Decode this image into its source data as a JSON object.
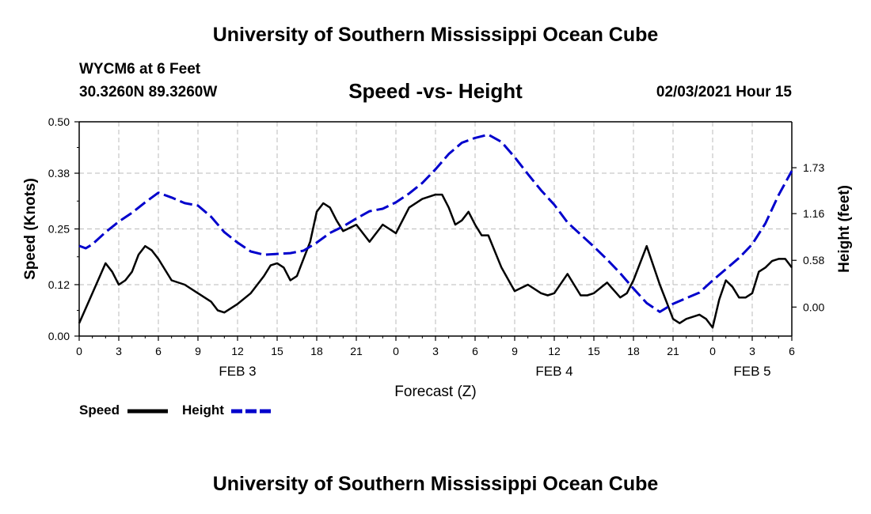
{
  "header": {
    "title": "University of Southern Mississippi Ocean Cube"
  },
  "station": {
    "name": "WYCM6 at 6 Feet",
    "coords": "30.3260N 89.3260W",
    "datetime": "02/03/2021 Hour 15"
  },
  "footer": {
    "title": "University of Southern Mississippi Ocean Cube"
  },
  "colors": {
    "speed": "#000000",
    "height": "#0000cc",
    "grid": "#bbbbbb"
  },
  "chart_data": {
    "type": "line",
    "title": "Speed -vs- Height",
    "xlabel": "Forecast (Z)",
    "ylabel": "Speed (Knots)",
    "y2label": "Height (feet)",
    "x_range": [
      0,
      54
    ],
    "ylim": [
      0,
      0.5
    ],
    "y2lim": [
      -0.36,
      2.3
    ],
    "y_ticks": [
      0.0,
      0.12,
      0.25,
      0.38,
      0.5
    ],
    "y_tick_labels": [
      "0.00",
      "0.12",
      "0.25",
      "0.38",
      "0.50"
    ],
    "y2_ticks": [
      0.0,
      0.58,
      1.16,
      1.73
    ],
    "y2_tick_labels": [
      "0.00",
      "0.58",
      "1.16",
      "1.73"
    ],
    "x_ticks": [
      0,
      3,
      6,
      9,
      12,
      15,
      18,
      21,
      24,
      27,
      30,
      33,
      36,
      39,
      42,
      45,
      48,
      51,
      54
    ],
    "x_tick_labels": [
      "0",
      "3",
      "6",
      "9",
      "12",
      "15",
      "18",
      "21",
      "0",
      "3",
      "6",
      "9",
      "12",
      "15",
      "18",
      "21",
      "0",
      "3",
      "6"
    ],
    "day_labels": [
      {
        "label": "FEB 3",
        "x": 12
      },
      {
        "label": "FEB 4",
        "x": 36
      },
      {
        "label": "FEB 5",
        "x": 51
      }
    ],
    "grid": true,
    "legend": {
      "position": "bottom-left",
      "speed_label": "Speed",
      "height_label": "Height"
    },
    "series": [
      {
        "name": "Speed",
        "axis": "left",
        "style": "solid",
        "x": [
          0,
          1,
          2,
          2.5,
          3,
          3.5,
          4,
          4.5,
          5,
          5.5,
          6,
          7,
          8,
          9,
          10,
          10.5,
          11,
          12,
          13,
          14,
          14.5,
          15,
          15.5,
          16,
          16.5,
          17,
          17.5,
          18,
          18.5,
          19,
          19.5,
          20,
          21,
          22,
          23,
          23.5,
          24,
          25,
          26,
          27,
          27.5,
          28,
          28.5,
          29,
          29.5,
          30,
          30.5,
          31,
          32,
          33,
          34,
          35,
          35.5,
          36,
          37,
          37.5,
          38,
          38.5,
          39,
          40,
          41,
          41.5,
          42,
          43,
          44,
          44.5,
          45,
          45.5,
          46,
          47,
          47.5,
          48,
          48.5,
          49,
          49.5,
          50,
          50.5,
          51,
          51.5,
          52,
          52.5,
          53,
          53.5,
          54
        ],
        "values": [
          0.03,
          0.1,
          0.17,
          0.15,
          0.12,
          0.13,
          0.15,
          0.19,
          0.21,
          0.2,
          0.18,
          0.13,
          0.12,
          0.1,
          0.08,
          0.06,
          0.055,
          0.075,
          0.1,
          0.14,
          0.165,
          0.17,
          0.16,
          0.13,
          0.14,
          0.18,
          0.22,
          0.29,
          0.31,
          0.3,
          0.27,
          0.245,
          0.26,
          0.22,
          0.26,
          0.25,
          0.24,
          0.3,
          0.32,
          0.33,
          0.33,
          0.3,
          0.26,
          0.27,
          0.29,
          0.26,
          0.235,
          0.235,
          0.16,
          0.105,
          0.12,
          0.1,
          0.095,
          0.1,
          0.145,
          0.12,
          0.095,
          0.095,
          0.1,
          0.125,
          0.09,
          0.1,
          0.13,
          0.21,
          0.12,
          0.08,
          0.04,
          0.03,
          0.04,
          0.05,
          0.04,
          0.02,
          0.085,
          0.13,
          0.115,
          0.09,
          0.09,
          0.1,
          0.15,
          0.16,
          0.175,
          0.18,
          0.18,
          0.16
        ]
      },
      {
        "name": "Height",
        "axis": "right",
        "style": "dashed",
        "x": [
          0,
          0.5,
          1,
          2,
          3,
          4,
          5,
          6,
          7,
          8,
          9,
          10,
          11,
          12,
          13,
          14,
          15,
          16,
          17,
          18,
          19,
          20,
          21,
          22,
          23,
          24,
          25,
          26,
          27,
          28,
          29,
          30,
          31,
          32,
          33,
          34,
          35,
          36,
          37,
          38,
          39,
          40,
          41,
          42,
          43,
          44,
          45,
          46,
          47,
          48,
          49,
          50,
          51,
          52,
          53,
          54
        ],
        "values": [
          0.76,
          0.73,
          0.78,
          0.93,
          1.06,
          1.17,
          1.3,
          1.42,
          1.36,
          1.29,
          1.26,
          1.12,
          0.93,
          0.8,
          0.69,
          0.65,
          0.66,
          0.67,
          0.7,
          0.8,
          0.92,
          1.0,
          1.1,
          1.19,
          1.22,
          1.3,
          1.41,
          1.54,
          1.71,
          1.9,
          2.04,
          2.1,
          2.14,
          2.05,
          1.86,
          1.65,
          1.45,
          1.27,
          1.05,
          0.9,
          0.75,
          0.59,
          0.42,
          0.23,
          0.05,
          -0.06,
          0.04,
          0.11,
          0.18,
          0.33,
          0.47,
          0.61,
          0.78,
          1.04,
          1.39,
          1.69
        ]
      }
    ]
  }
}
